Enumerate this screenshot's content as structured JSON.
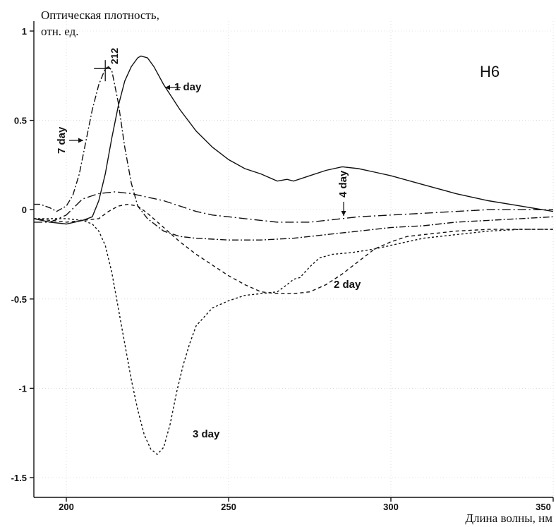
{
  "chart_data": {
    "type": "line",
    "title": "",
    "panel_label": "H6",
    "ylabel_line1": "Оптическая плотность,",
    "ylabel_line2": "отн. ед.",
    "xlabel": "Длина волны, нм",
    "xlim": [
      190,
      350
    ],
    "ylim": [
      -1.5,
      1
    ],
    "x_ticks": [
      200,
      250,
      300,
      350
    ],
    "x_tick_labels": [
      "200",
      "250",
      "300",
      "350"
    ],
    "y_ticks": [
      1,
      0.5,
      0,
      -0.5,
      -1,
      -1.5
    ],
    "y_tick_labels": [
      "1",
      "0.5",
      "0",
      "-0.5",
      "-1",
      "-1.5"
    ],
    "peak_annotation": {
      "label": "212",
      "x": 212,
      "y": 0.79
    },
    "series": [
      {
        "name": "1 day",
        "dash": "",
        "label": "1 day",
        "points": [
          [
            190,
            -0.05
          ],
          [
            195,
            -0.07
          ],
          [
            200,
            -0.08
          ],
          [
            205,
            -0.06
          ],
          [
            208,
            -0.04
          ],
          [
            210,
            0.05
          ],
          [
            212,
            0.2
          ],
          [
            214,
            0.4
          ],
          [
            216,
            0.58
          ],
          [
            218,
            0.72
          ],
          [
            220,
            0.8
          ],
          [
            222,
            0.85
          ],
          [
            223,
            0.86
          ],
          [
            225,
            0.85
          ],
          [
            227,
            0.8
          ],
          [
            230,
            0.7
          ],
          [
            235,
            0.56
          ],
          [
            240,
            0.44
          ],
          [
            245,
            0.35
          ],
          [
            250,
            0.28
          ],
          [
            255,
            0.23
          ],
          [
            260,
            0.2
          ],
          [
            265,
            0.16
          ],
          [
            268,
            0.17
          ],
          [
            270,
            0.16
          ],
          [
            275,
            0.19
          ],
          [
            280,
            0.22
          ],
          [
            285,
            0.24
          ],
          [
            290,
            0.23
          ],
          [
            295,
            0.21
          ],
          [
            300,
            0.19
          ],
          [
            310,
            0.14
          ],
          [
            320,
            0.09
          ],
          [
            330,
            0.05
          ],
          [
            340,
            0.02
          ],
          [
            350,
            -0.01
          ]
        ]
      },
      {
        "name": "2 day",
        "dash": "5 4",
        "label": "2 day",
        "points": [
          [
            190,
            -0.05
          ],
          [
            195,
            -0.06
          ],
          [
            200,
            -0.07
          ],
          [
            205,
            -0.06
          ],
          [
            210,
            -0.05
          ],
          [
            213,
            -0.01
          ],
          [
            216,
            0.02
          ],
          [
            219,
            0.03
          ],
          [
            222,
            0.02
          ],
          [
            225,
            -0.02
          ],
          [
            230,
            -0.1
          ],
          [
            235,
            -0.18
          ],
          [
            240,
            -0.25
          ],
          [
            245,
            -0.31
          ],
          [
            250,
            -0.37
          ],
          [
            255,
            -0.42
          ],
          [
            260,
            -0.46
          ],
          [
            265,
            -0.47
          ],
          [
            270,
            -0.47
          ],
          [
            275,
            -0.46
          ],
          [
            280,
            -0.42
          ],
          [
            285,
            -0.36
          ],
          [
            290,
            -0.29
          ],
          [
            295,
            -0.22
          ],
          [
            300,
            -0.18
          ],
          [
            305,
            -0.15
          ],
          [
            310,
            -0.14
          ],
          [
            320,
            -0.12
          ],
          [
            330,
            -0.11
          ],
          [
            340,
            -0.11
          ],
          [
            350,
            -0.11
          ]
        ]
      },
      {
        "name": "3 day",
        "dash": "3 3",
        "label": "3 day",
        "points": [
          [
            190,
            -0.05
          ],
          [
            195,
            -0.05
          ],
          [
            200,
            -0.05
          ],
          [
            205,
            -0.06
          ],
          [
            208,
            -0.08
          ],
          [
            210,
            -0.12
          ],
          [
            212,
            -0.2
          ],
          [
            214,
            -0.35
          ],
          [
            216,
            -0.55
          ],
          [
            218,
            -0.75
          ],
          [
            220,
            -0.95
          ],
          [
            222,
            -1.12
          ],
          [
            224,
            -1.26
          ],
          [
            226,
            -1.34
          ],
          [
            228,
            -1.37
          ],
          [
            230,
            -1.33
          ],
          [
            232,
            -1.2
          ],
          [
            234,
            -1.02
          ],
          [
            236,
            -0.87
          ],
          [
            238,
            -0.75
          ],
          [
            240,
            -0.65
          ],
          [
            245,
            -0.55
          ],
          [
            250,
            -0.51
          ],
          [
            255,
            -0.48
          ],
          [
            260,
            -0.47
          ],
          [
            265,
            -0.46
          ],
          [
            268,
            -0.42
          ],
          [
            270,
            -0.39
          ],
          [
            272,
            -0.38
          ],
          [
            275,
            -0.32
          ],
          [
            278,
            -0.27
          ],
          [
            282,
            -0.25
          ],
          [
            288,
            -0.24
          ],
          [
            295,
            -0.22
          ],
          [
            300,
            -0.2
          ],
          [
            310,
            -0.16
          ],
          [
            320,
            -0.14
          ],
          [
            330,
            -0.12
          ],
          [
            340,
            -0.11
          ],
          [
            350,
            -0.11
          ]
        ]
      },
      {
        "name": "4 day",
        "dash": "12 4 2 4",
        "label": "4 day",
        "points": [
          [
            190,
            -0.07
          ],
          [
            195,
            -0.07
          ],
          [
            200,
            -0.03
          ],
          [
            205,
            0.06
          ],
          [
            210,
            0.09
          ],
          [
            215,
            0.1
          ],
          [
            220,
            0.09
          ],
          [
            225,
            0.07
          ],
          [
            230,
            0.05
          ],
          [
            235,
            0.02
          ],
          [
            240,
            -0.01
          ],
          [
            245,
            -0.03
          ],
          [
            250,
            -0.04
          ],
          [
            255,
            -0.05
          ],
          [
            260,
            -0.06
          ],
          [
            265,
            -0.07
          ],
          [
            270,
            -0.07
          ],
          [
            275,
            -0.07
          ],
          [
            280,
            -0.06
          ],
          [
            285,
            -0.05
          ],
          [
            290,
            -0.04
          ],
          [
            300,
            -0.03
          ],
          [
            310,
            -0.02
          ],
          [
            320,
            -0.01
          ],
          [
            330,
            0
          ],
          [
            340,
            0
          ],
          [
            350,
            0
          ]
        ]
      },
      {
        "name": "7 day",
        "dash": "9 3 2 3",
        "label": "7 day",
        "points": [
          [
            190,
            0.03
          ],
          [
            192,
            0.03
          ],
          [
            195,
            0.01
          ],
          [
            197,
            -0.01
          ],
          [
            200,
            0.02
          ],
          [
            202,
            0.08
          ],
          [
            204,
            0.2
          ],
          [
            206,
            0.38
          ],
          [
            208,
            0.56
          ],
          [
            210,
            0.7
          ],
          [
            212,
            0.79
          ],
          [
            213,
            0.8
          ],
          [
            214,
            0.78
          ],
          [
            216,
            0.6
          ],
          [
            218,
            0.35
          ],
          [
            220,
            0.15
          ],
          [
            222,
            0.02
          ],
          [
            225,
            -0.05
          ],
          [
            230,
            -0.12
          ],
          [
            235,
            -0.15
          ],
          [
            240,
            -0.16
          ],
          [
            250,
            -0.17
          ],
          [
            260,
            -0.17
          ],
          [
            270,
            -0.16
          ],
          [
            280,
            -0.14
          ],
          [
            290,
            -0.12
          ],
          [
            300,
            -0.1
          ],
          [
            310,
            -0.09
          ],
          [
            320,
            -0.07
          ],
          [
            330,
            -0.06
          ],
          [
            340,
            -0.05
          ],
          [
            350,
            -0.04
          ]
        ]
      }
    ]
  }
}
